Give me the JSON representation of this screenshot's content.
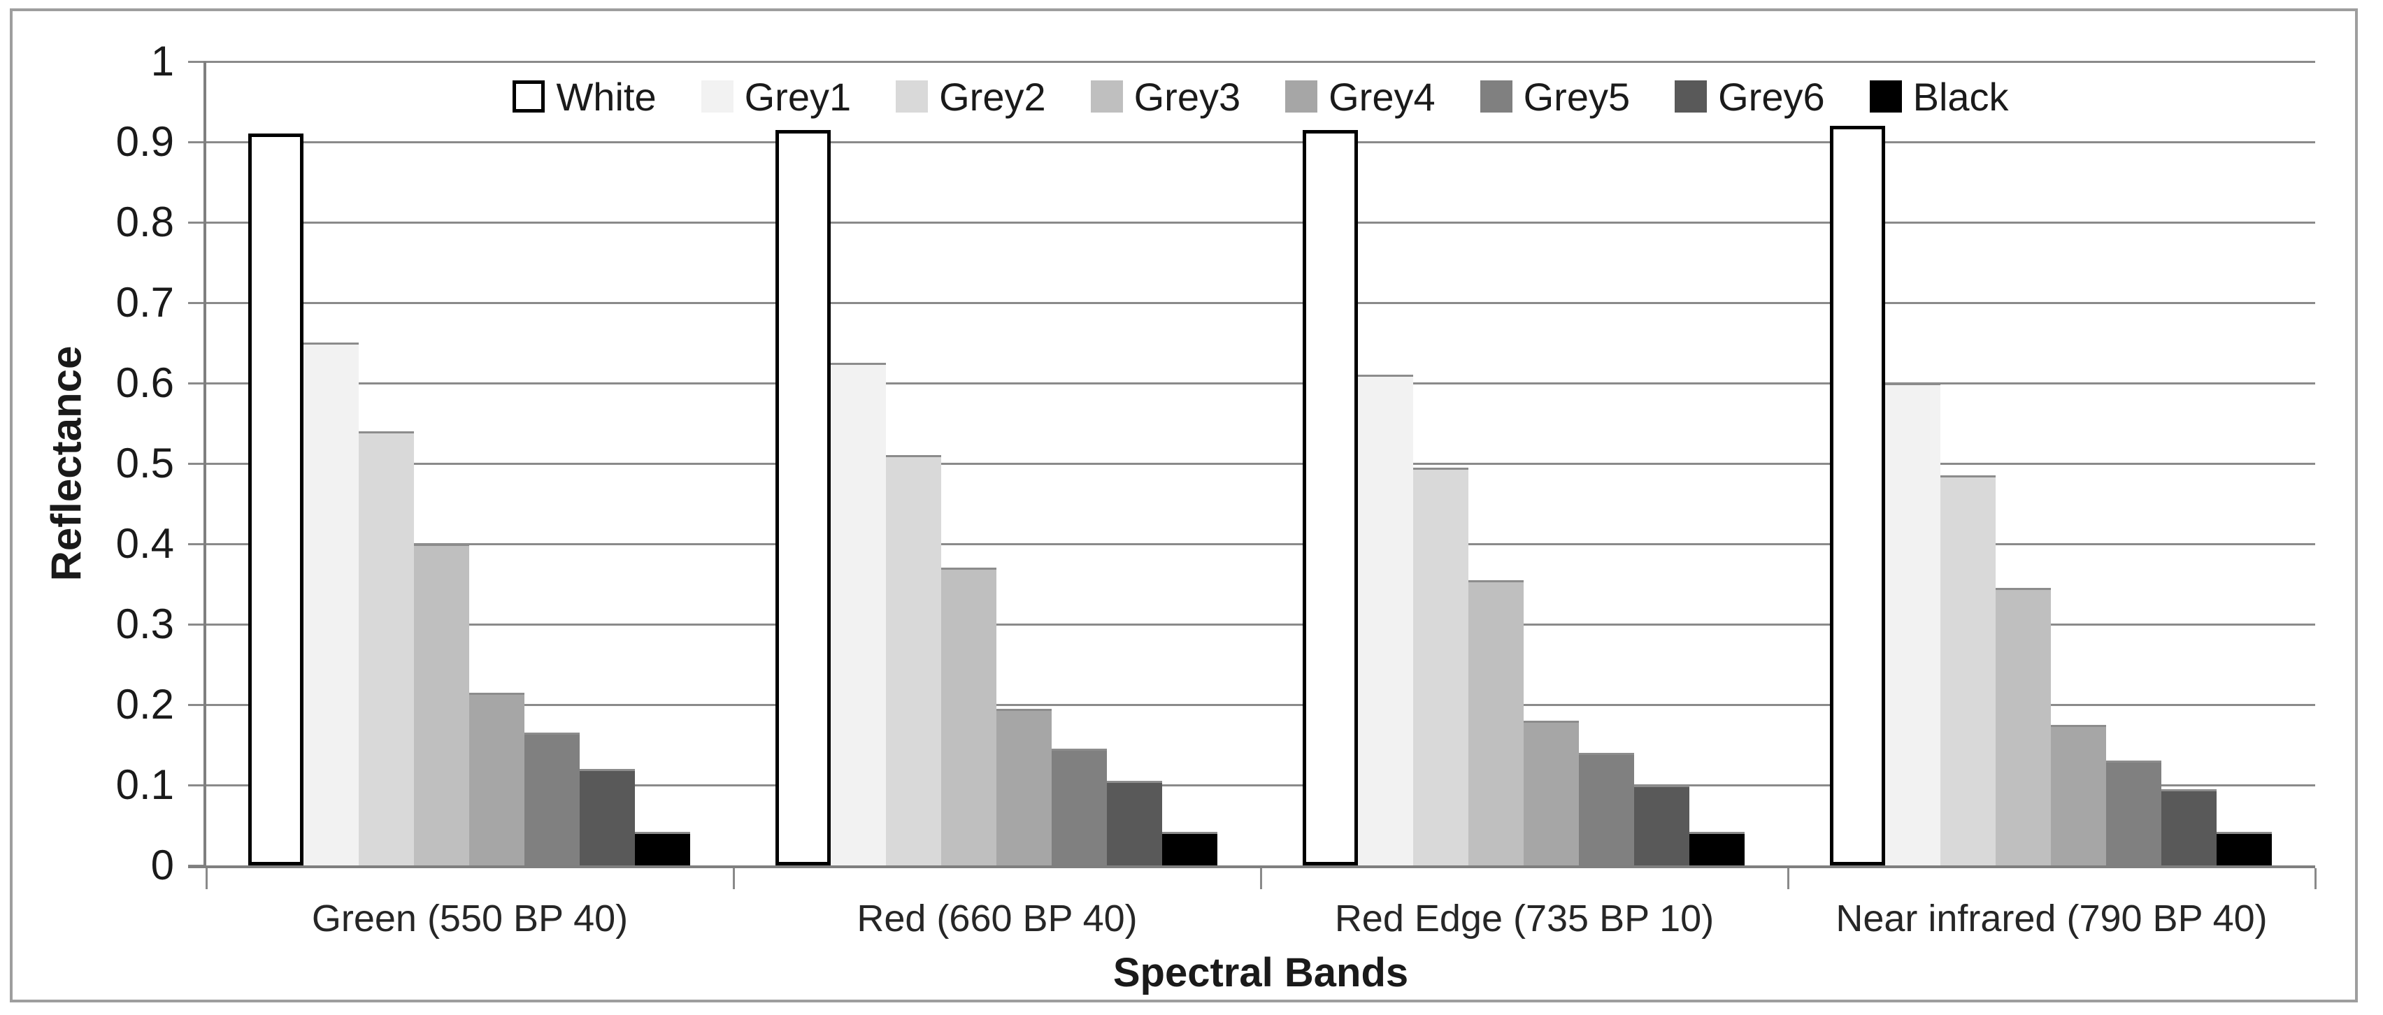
{
  "chart_data": {
    "type": "bar",
    "title": "",
    "xlabel": "Spectral Bands",
    "ylabel": "Reflectance",
    "ylim": [
      0,
      1
    ],
    "ytick_labels": [
      "0",
      "0.1",
      "0.2",
      "0.3",
      "0.4",
      "0.5",
      "0.6",
      "0.7",
      "0.8",
      "0.9",
      "1"
    ],
    "grid": true,
    "legend_position": "top",
    "categories": [
      "Green (550 BP 40)",
      "Red (660 BP 40)",
      "Red Edge (735 BP 10)",
      "Near infrared (790 BP 40)"
    ],
    "series": [
      {
        "name": "White",
        "color": "#ffffff",
        "outline": "#000000",
        "values": [
          0.91,
          0.915,
          0.915,
          0.92
        ]
      },
      {
        "name": "Grey1",
        "color": "#f2f2f2",
        "values": [
          0.65,
          0.625,
          0.61,
          0.6
        ]
      },
      {
        "name": "Grey2",
        "color": "#d9d9d9",
        "values": [
          0.54,
          0.51,
          0.495,
          0.485
        ]
      },
      {
        "name": "Grey3",
        "color": "#bfbfbf",
        "values": [
          0.4,
          0.37,
          0.355,
          0.345
        ]
      },
      {
        "name": "Grey4",
        "color": "#a6a6a6",
        "values": [
          0.215,
          0.195,
          0.18,
          0.175
        ]
      },
      {
        "name": "Grey5",
        "color": "#808080",
        "values": [
          0.165,
          0.145,
          0.14,
          0.13
        ]
      },
      {
        "name": "Grey6",
        "color": "#595959",
        "values": [
          0.12,
          0.105,
          0.1,
          0.095
        ]
      },
      {
        "name": "Black",
        "color": "#000000",
        "values": [
          0.042,
          0.042,
          0.042,
          0.042
        ]
      }
    ]
  }
}
